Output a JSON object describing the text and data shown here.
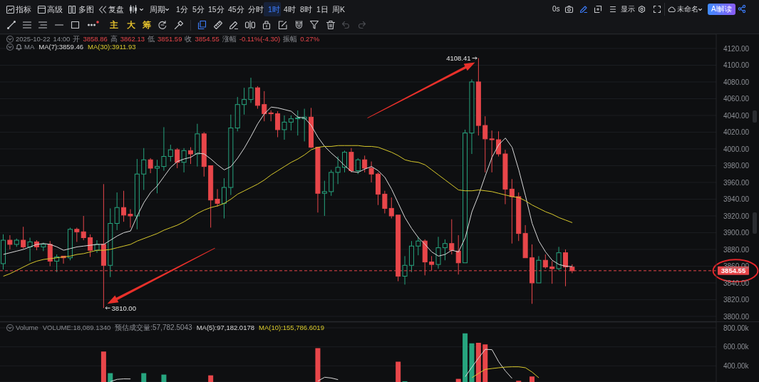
{
  "chart_data": [
    {
      "type": "other",
      "annotations": [
        "指标",
        "高级",
        "多图",
        "复盘",
        "周期",
        "1分",
        "5分",
        "15分",
        "45分",
        "分时",
        "1时",
        "4时",
        "8时",
        "1日",
        "周K",
        "0s",
        "显示",
        "未命名",
        "AI解读",
        "主",
        "大",
        "筹"
      ]
    },
    {
      "type": "candlestick",
      "subtitle": "2025-10-22 14:00 开 3858.86 高 3862.13 低 3851.59 收 3854.55 涨幅 -0.11%(-4.30) 振幅 0.27%",
      "legend_title": "MA",
      "legend": "top left",
      "grid": "y",
      "tick_labels": "y",
      "categories": [
        null,
        null,
        null,
        null,
        null,
        null,
        null,
        null,
        null,
        null,
        null,
        null,
        null,
        null,
        null,
        null,
        null,
        null,
        null,
        null,
        null,
        null,
        null,
        null,
        null,
        null,
        null,
        null,
        null,
        null,
        null,
        null,
        null,
        null,
        null,
        null,
        null,
        null,
        null,
        null,
        null,
        null,
        null,
        null,
        null,
        null,
        null,
        null,
        null,
        null,
        null,
        null,
        null,
        null,
        null,
        null,
        null,
        null,
        null,
        null,
        null,
        null,
        null,
        null,
        null,
        null,
        null,
        null,
        null,
        null,
        null,
        null,
        null,
        null,
        null,
        null,
        null,
        null,
        null,
        null,
        null,
        null,
        null,
        null,
        null,
        null,
        null,
        null,
        null,
        null,
        null,
        null,
        null,
        null,
        null,
        null,
        null,
        null,
        null,
        null,
        null,
        null,
        null,
        null,
        null,
        null,
        null
      ],
      "ohlc": [
        [
          3863,
          3898,
          3856,
          3891
        ],
        [
          3891,
          3897,
          3880,
          3886
        ],
        [
          3886,
          3893,
          3883,
          3891
        ],
        [
          3891,
          3907,
          3881,
          3883
        ],
        [
          3883,
          3894,
          3866,
          3889
        ],
        [
          3889,
          3891,
          3879,
          3883
        ],
        [
          3883,
          3888,
          3878,
          3886
        ],
        [
          3886,
          3890,
          3860,
          3866
        ],
        [
          3866,
          3874,
          3853,
          3871
        ],
        [
          3872,
          3872,
          3863,
          3870
        ],
        [
          3870,
          3906,
          3867,
          3904
        ],
        [
          3904,
          3906,
          3889,
          3901
        ],
        [
          3901,
          3920,
          3891,
          3894
        ],
        [
          3894,
          3898,
          3871,
          3879
        ],
        [
          3879,
          3891,
          3876,
          3886
        ],
        [
          3886,
          3958,
          3810,
          3861
        ],
        [
          3861,
          3929,
          3847,
          3911
        ],
        [
          3911,
          3948,
          3903,
          3930
        ],
        [
          3930,
          3950,
          3913,
          3921
        ],
        [
          3922,
          3928,
          3906,
          3920
        ],
        [
          3920,
          3988,
          3904,
          3970
        ],
        [
          3970,
          4001,
          3951,
          3987
        ],
        [
          3987,
          3989,
          3971,
          3977
        ],
        [
          3977,
          3987,
          3947,
          3979
        ],
        [
          3979,
          4026,
          3974,
          3991
        ],
        [
          3991,
          4005,
          3985,
          3999
        ],
        [
          3999,
          4001,
          3977,
          3984
        ],
        [
          3984,
          4001,
          3972,
          3998
        ],
        [
          3998,
          4002,
          3982,
          3994
        ],
        [
          3994,
          4030,
          3979,
          4018
        ],
        [
          4018,
          4020,
          3967,
          3979
        ],
        [
          3980,
          3980,
          3906,
          3939
        ],
        [
          3940,
          3952,
          3931,
          3935
        ],
        [
          3935,
          3965,
          3917,
          3954
        ],
        [
          3954,
          4041,
          3945,
          4025
        ],
        [
          4025,
          4062,
          4021,
          4053
        ],
        [
          4053,
          4073,
          4041,
          4059
        ],
        [
          4059,
          4085,
          4055,
          4073
        ],
        [
          4073,
          4075,
          4048,
          4052
        ],
        [
          4053,
          4069,
          4033,
          4042
        ],
        [
          4043,
          4046,
          4033,
          4042
        ],
        [
          4042,
          4045,
          4014,
          4023
        ],
        [
          4023,
          4040,
          4011,
          4032
        ],
        [
          4032,
          4040,
          4022,
          4036
        ],
        [
          4036,
          4046,
          4016,
          4037
        ],
        [
          4036,
          4048,
          4009,
          4038
        ],
        [
          4038,
          4049,
          4001,
          4002
        ],
        [
          4002,
          4002,
          3924,
          3947
        ],
        [
          3947,
          3962,
          3920,
          3949
        ],
        [
          3949,
          3975,
          3944,
          3972
        ],
        [
          3972,
          3991,
          3958,
          3978
        ],
        [
          3978,
          3998,
          3972,
          3996
        ],
        [
          3996,
          4001,
          3972,
          3974
        ],
        [
          3974,
          3989,
          3970,
          3987
        ],
        [
          3987,
          3992,
          3972,
          3977
        ],
        [
          3977,
          3985,
          3960,
          3970
        ],
        [
          3970,
          3972,
          3933,
          3946
        ],
        [
          3946,
          3950,
          3923,
          3929
        ],
        [
          3929,
          3942,
          3917,
          3920
        ],
        [
          3921,
          3921,
          3842,
          3848
        ],
        [
          3848,
          3872,
          3838,
          3861
        ],
        [
          3861,
          3890,
          3853,
          3884
        ],
        [
          3884,
          3895,
          3873,
          3890
        ],
        [
          3890,
          3892,
          3849,
          3865
        ],
        [
          3865,
          3872,
          3855,
          3862
        ],
        [
          3862,
          3895,
          3857,
          3882
        ],
        [
          3882,
          3892,
          3867,
          3887
        ],
        [
          3887,
          3916,
          3874,
          3879
        ],
        [
          3878,
          3897,
          3850,
          3864
        ],
        [
          3864,
          4023,
          3864,
          4019
        ],
        [
          4019,
          4083,
          3994,
          4080
        ],
        [
          4080,
          4108.41,
          4016,
          4028
        ],
        [
          4028,
          4039,
          3972,
          4012
        ],
        [
          4012,
          4022,
          3972,
          4011
        ],
        [
          4011,
          4021,
          3991,
          3994
        ],
        [
          3994,
          3999,
          3934,
          3952
        ],
        [
          3952,
          3964,
          3887,
          3943
        ],
        [
          3943,
          3948,
          3890,
          3899
        ],
        [
          3899,
          3909,
          3870,
          3870
        ],
        [
          3870,
          3886,
          3815,
          3840
        ],
        [
          3840,
          3872,
          3840,
          3867
        ],
        [
          3867,
          3874,
          3857,
          3859
        ],
        [
          3859,
          3866,
          3839,
          3857
        ],
        [
          3857,
          3883,
          3855,
          3876
        ],
        [
          3876,
          3880,
          3836,
          3859
        ],
        [
          3858.86,
          3862.13,
          3851.59,
          3854.55
        ],
        null,
        null,
        null,
        null,
        null,
        null,
        null,
        null,
        null,
        null,
        null,
        null,
        null,
        null,
        null,
        null,
        null,
        null,
        null,
        null,
        null
      ],
      "colors": [
        "#27a57f",
        "#e8464a",
        "#27a57f",
        "#e8464a",
        "#27a57f",
        "#e8464a",
        "#27a57f",
        "#e8464a",
        "#27a57f",
        "#e8464a",
        "#27a57f",
        "#e8464a",
        "#e8464a",
        "#e8464a",
        "#27a57f",
        "#e8464a",
        "#27a57f",
        "#27a57f",
        "#e8464a",
        "#e8464a",
        "#27a57f",
        "#27a57f",
        "#e8464a",
        "#27a57f",
        "#27a57f",
        "#27a57f",
        "#e8464a",
        "#27a57f",
        "#e8464a",
        "#27a57f",
        "#e8464a",
        "#e8464a",
        "#e8464a",
        "#27a57f",
        "#27a57f",
        "#27a57f",
        "#27a57f",
        "#27a57f",
        "#e8464a",
        "#e8464a",
        "#e8464a",
        "#e8464a",
        "#27a57f",
        "#27a57f",
        "#27a57f",
        "#27a57f",
        "#e8464a",
        "#e8464a",
        "#27a57f",
        "#27a57f",
        "#27a57f",
        "#27a57f",
        "#e8464a",
        "#27a57f",
        "#e8464a",
        "#e8464a",
        "#e8464a",
        "#e8464a",
        "#e8464a",
        "#e8464a",
        "#27a57f",
        "#27a57f",
        "#27a57f",
        "#e8464a",
        "#e8464a",
        "#27a57f",
        "#27a57f",
        "#e8464a",
        "#e8464a",
        "#27a57f",
        "#27a57f",
        "#e8464a",
        "#e8464a",
        "#e8464a",
        "#e8464a",
        "#e8464a",
        "#e8464a",
        "#e8464a",
        "#e8464a",
        "#e8464a",
        "#27a57f",
        "#e8464a",
        "#e8464a",
        "#27a57f",
        "#e8464a",
        "#e8464a",
        null,
        null,
        null,
        null,
        null,
        null,
        null,
        null,
        null,
        null,
        null,
        null,
        null,
        null,
        null,
        null,
        null,
        null,
        null,
        null,
        null
      ],
      "series": [
        {
          "name": "MA(7):3859.46",
          "type": "line",
          "color": "#d9d9d9",
          "values": [
            3874,
            3876,
            3878,
            3880,
            3883,
            3886,
            3887,
            3886,
            3883,
            3879,
            3881,
            3883,
            3884,
            3885,
            3886,
            3886,
            3891,
            3896,
            3900,
            3902,
            3920,
            3936,
            3948,
            3956,
            3967,
            3978,
            3985,
            3988,
            3990,
            3995,
            3994,
            3988,
            3981,
            3975,
            3979,
            3989,
            4001,
            4015,
            4030,
            4042,
            4050,
            4049,
            4047,
            4045,
            4038,
            4037,
            4028,
            4014,
            4003,
            3995,
            3988,
            3980,
            3973,
            3972,
            3976,
            3979,
            3974,
            3966,
            3952,
            3935,
            3918,
            3905,
            3894,
            3886,
            3877,
            3872,
            3874,
            3879,
            3877,
            3894,
            3925,
            3945,
            3968,
            3990,
            4005,
            4013,
            4002,
            3975,
            3944,
            3911,
            3890,
            3877,
            3867,
            3862,
            3860,
            3859.46,
            null,
            null,
            null,
            null,
            null,
            null,
            null,
            null,
            null,
            null,
            null,
            null,
            null,
            null,
            null,
            null,
            null,
            null,
            null,
            null,
            null
          ]
        },
        {
          "name": "MA(30):3911.93",
          "type": "line",
          "color": "#d8c92c",
          "values": [
            3848,
            3851,
            3855,
            3859,
            3863,
            3866,
            3868,
            3869,
            3870,
            3871,
            3872,
            3874,
            3875,
            3877,
            3879,
            3879,
            3880,
            3882,
            3884,
            3886,
            3890,
            3893,
            3896,
            3899,
            3903,
            3906,
            3909,
            3913,
            3918,
            3923,
            3927,
            3930,
            3932,
            3935,
            3940,
            3946,
            3950,
            3954,
            3958,
            3963,
            3969,
            3974,
            3979,
            3984,
            3988,
            3993,
            3999,
            4002,
            4003,
            4003,
            4004,
            4004,
            4004,
            4004,
            4003,
            4003,
            4002,
            3999,
            3996,
            3992,
            3987,
            3985,
            3984,
            3981,
            3975,
            3969,
            3963,
            3957,
            3951,
            3950,
            3950,
            3951,
            3950,
            3949,
            3947,
            3945,
            3943,
            3942,
            3938,
            3933,
            3929,
            3925,
            3922,
            3918,
            3915,
            3911.93,
            null,
            null,
            null,
            null,
            null,
            null,
            null,
            null,
            null,
            null,
            null,
            null,
            null,
            null,
            null,
            null,
            null,
            null,
            null,
            null,
            null
          ]
        }
      ],
      "ylim": [
        3794,
        4137
      ],
      "yticks": [
        {
          "value": 3800,
          "label": "3800.00"
        },
        {
          "value": 3820,
          "label": "3820.00"
        },
        {
          "value": 3840,
          "label": "3840.00"
        },
        {
          "value": 3860,
          "label": "3860.00"
        },
        {
          "value": 3880,
          "label": "3880.00"
        },
        {
          "value": 3900,
          "label": "3900.00"
        },
        {
          "value": 3920,
          "label": "3920.00"
        },
        {
          "value": 3940,
          "label": "3940.00"
        },
        {
          "value": 3960,
          "label": "3960.00"
        },
        {
          "value": 3980,
          "label": "3980.00"
        },
        {
          "value": 4000,
          "label": "4000.00"
        },
        {
          "value": 4020,
          "label": "4020.00"
        },
        {
          "value": 4040,
          "label": "4040.00"
        },
        {
          "value": 4060,
          "label": "4060.00"
        },
        {
          "value": 4080,
          "label": "4080.00"
        },
        {
          "value": 4100,
          "label": "4100.00"
        },
        {
          "value": 4120,
          "label": "4120.00"
        }
      ],
      "ref_lines": [
        {
          "axis": "y",
          "value": 3854.55,
          "label": "3854.55",
          "color": "#e8464a",
          "line_style": "dashed"
        }
      ],
      "annotations": [
        "3810.00",
        "4108.41"
      ]
    },
    {
      "type": "bar",
      "legend_title": "Volume",
      "legend": "top left",
      "grid": "y",
      "tick_labels": "y",
      "categories": [
        null,
        null,
        null,
        null,
        null,
        null,
        null,
        null,
        null,
        null,
        null,
        null,
        null,
        null,
        null,
        null,
        null,
        null,
        null,
        null,
        null,
        null,
        null,
        null,
        null,
        null,
        null,
        null,
        null,
        null,
        null,
        null,
        null,
        null,
        null,
        null,
        null,
        null,
        null,
        null,
        null,
        null,
        null,
        null,
        null,
        null,
        null,
        null,
        null,
        null,
        null,
        null,
        null,
        null,
        null,
        null,
        null,
        null,
        null,
        null,
        null,
        null,
        null,
        null,
        null,
        null,
        null,
        null,
        null,
        null,
        null,
        null,
        null,
        null,
        null,
        null,
        null,
        null,
        null,
        null,
        null,
        null,
        null,
        null,
        null,
        null,
        null,
        null,
        null,
        null,
        null,
        null,
        null,
        null,
        null,
        null,
        null,
        null,
        null,
        null,
        null,
        null,
        null,
        null,
        null,
        null,
        null
      ],
      "series": [
        {
          "colors": [
            "#27a57f",
            "#e8464a",
            "#27a57f",
            "#e8464a",
            "#27a57f",
            "#e8464a",
            "#27a57f",
            "#e8464a",
            "#27a57f",
            "#e8464a",
            "#27a57f",
            "#e8464a",
            "#e8464a",
            "#e8464a",
            "#27a57f",
            "#e8464a",
            "#27a57f",
            "#27a57f",
            "#e8464a",
            "#e8464a",
            "#27a57f",
            "#27a57f",
            "#e8464a",
            "#27a57f",
            "#27a57f",
            "#27a57f",
            "#e8464a",
            "#27a57f",
            "#e8464a",
            "#27a57f",
            "#e8464a",
            "#e8464a",
            "#e8464a",
            "#27a57f",
            "#27a57f",
            "#27a57f",
            "#27a57f",
            "#27a57f",
            "#e8464a",
            "#e8464a",
            "#e8464a",
            "#e8464a",
            "#27a57f",
            "#27a57f",
            "#27a57f",
            "#27a57f",
            "#e8464a",
            "#e8464a",
            "#27a57f",
            "#27a57f",
            "#27a57f",
            "#27a57f",
            "#e8464a",
            "#27a57f",
            "#e8464a",
            "#e8464a",
            "#e8464a",
            "#e8464a",
            "#e8464a",
            "#e8464a",
            "#27a57f",
            "#27a57f",
            "#27a57f",
            "#e8464a",
            "#e8464a",
            "#27a57f",
            "#27a57f",
            "#e8464a",
            "#e8464a",
            "#27a57f",
            "#27a57f",
            "#e8464a",
            "#e8464a",
            "#e8464a",
            "#e8464a",
            "#e8464a",
            "#e8464a",
            "#e8464a",
            "#e8464a",
            "#e8464a",
            "#27a57f",
            "#e8464a",
            "#e8464a",
            "#27a57f",
            "#e8464a",
            "#e8464a",
            null,
            null,
            null,
            null,
            null,
            null,
            null,
            null,
            null,
            null,
            null,
            null,
            null,
            null,
            null,
            null,
            null,
            null,
            null,
            null,
            null
          ],
          "values": [
            null,
            null,
            null,
            null,
            null,
            null,
            null,
            null,
            null,
            null,
            null,
            null,
            null,
            null,
            null,
            550000,
            323000,
            null,
            null,
            null,
            null,
            323000,
            null,
            null,
            308000,
            null,
            null,
            null,
            null,
            null,
            null,
            300000,
            null,
            null,
            null,
            null,
            null,
            null,
            null,
            null,
            null,
            null,
            null,
            null,
            null,
            null,
            null,
            587000,
            null,
            null,
            null,
            null,
            null,
            null,
            null,
            null,
            null,
            null,
            null,
            443000,
            238000,
            null,
            null,
            null,
            null,
            null,
            null,
            null,
            263000,
            742000,
            637000,
            643000,
            625000,
            null,
            null,
            null,
            null,
            243000,
            null,
            288000,
            null,
            null,
            null,
            null,
            null,
            null,
            null,
            null,
            null,
            null,
            null,
            null,
            null,
            null,
            null,
            null,
            null,
            null,
            null,
            null,
            null,
            null,
            null,
            null,
            null,
            null,
            null
          ]
        },
        {
          "name": "MA(5):97,182.0178",
          "type": "line",
          "color": "#d9d9d9",
          "values": [
            null,
            null,
            null,
            null,
            null,
            null,
            null,
            null,
            null,
            null,
            null,
            null,
            null,
            null,
            null,
            null,
            235000,
            258000,
            263000,
            262000,
            null,
            null,
            null,
            null,
            null,
            null,
            null,
            null,
            null,
            null,
            null,
            null,
            null,
            null,
            null,
            null,
            null,
            null,
            null,
            null,
            null,
            null,
            null,
            null,
            null,
            null,
            null,
            240000,
            280000,
            272000,
            255000,
            null,
            null,
            null,
            null,
            null,
            null,
            null,
            null,
            null,
            null,
            null,
            null,
            null,
            null,
            null,
            null,
            null,
            null,
            286000,
            387000,
            483000,
            574000,
            570000,
            443000,
            347000,
            268000,
            null,
            null,
            null,
            null,
            null,
            null,
            null,
            null,
            null,
            null,
            null,
            null,
            null,
            null,
            null,
            null,
            null,
            null,
            null,
            null,
            null,
            null,
            null,
            null,
            null,
            null,
            null,
            null,
            null,
            null
          ]
        },
        {
          "name": "MA(10):155,786.6019",
          "type": "line",
          "color": "#d8c92c",
          "values": [
            null,
            null,
            null,
            null,
            null,
            null,
            null,
            null,
            null,
            null,
            null,
            null,
            null,
            null,
            null,
            null,
            null,
            null,
            null,
            null,
            null,
            null,
            null,
            null,
            null,
            null,
            null,
            null,
            null,
            null,
            null,
            null,
            null,
            null,
            null,
            null,
            null,
            null,
            null,
            null,
            null,
            null,
            null,
            null,
            null,
            null,
            null,
            null,
            null,
            null,
            null,
            null,
            null,
            null,
            null,
            null,
            null,
            null,
            null,
            null,
            null,
            null,
            null,
            null,
            null,
            null,
            null,
            null,
            null,
            null,
            275000,
            321000,
            363000,
            372000,
            380000,
            387000,
            390000,
            390000,
            380000,
            334000,
            274000,
            null,
            null,
            null,
            null,
            null,
            null,
            null,
            null,
            null,
            null,
            null,
            null,
            null,
            null,
            null,
            null,
            null,
            null,
            null,
            null,
            null,
            null,
            null,
            null,
            null,
            null
          ]
        }
      ],
      "ylim": [
        230000,
        860000
      ],
      "yticks": [
        {
          "value": 400000,
          "label": "400.00k"
        },
        {
          "value": 600000,
          "label": "600.00k"
        },
        {
          "value": 800000,
          "label": "800.00k"
        }
      ],
      "annotations": [
        "VOLUME:18,089.1340",
        "预估成交量:57,782.5043"
      ]
    }
  ]
}
